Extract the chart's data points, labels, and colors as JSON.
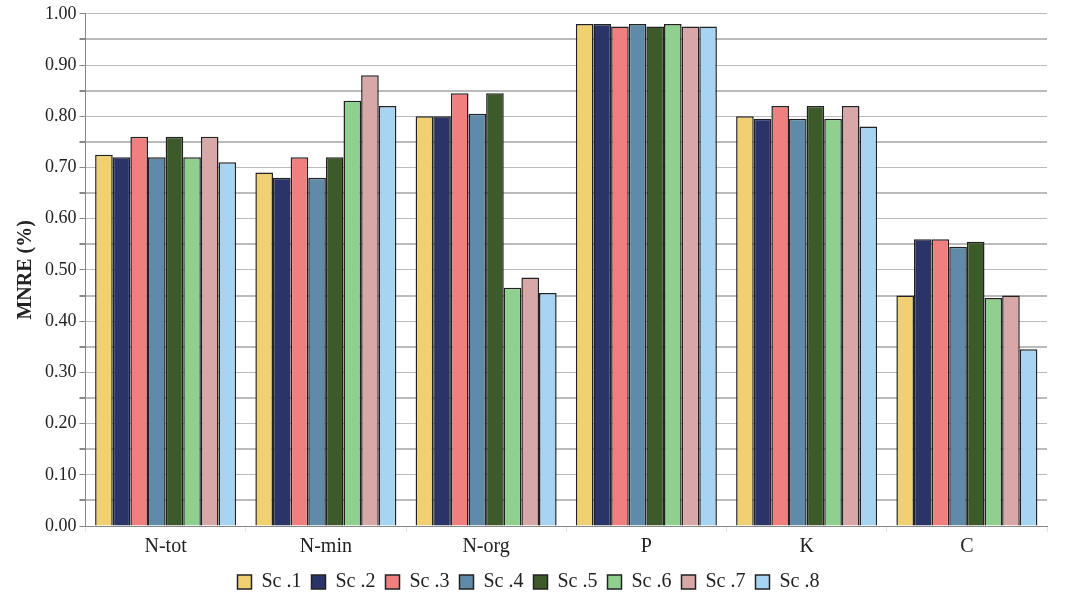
{
  "chart_data": {
    "type": "bar",
    "ylabel": "MNRE (%)",
    "categories": [
      "N-tot",
      "N-min",
      "N-org",
      "P",
      "K",
      "C"
    ],
    "series": [
      {
        "name": "Sc .1",
        "color": "#f0d070",
        "values": [
          0.725,
          0.69,
          0.8,
          0.98,
          0.8,
          0.45
        ]
      },
      {
        "name": "Sc .2",
        "color": "#2a3468",
        "values": [
          0.72,
          0.68,
          0.8,
          0.98,
          0.795,
          0.56
        ]
      },
      {
        "name": "Sc .3",
        "color": "#f08080",
        "values": [
          0.76,
          0.72,
          0.845,
          0.975,
          0.82,
          0.56
        ]
      },
      {
        "name": "Sc .4",
        "color": "#5f8aa8",
        "values": [
          0.72,
          0.68,
          0.805,
          0.98,
          0.795,
          0.545
        ]
      },
      {
        "name": "Sc .5",
        "color": "#3d5a2a",
        "values": [
          0.76,
          0.72,
          0.845,
          0.975,
          0.82,
          0.555
        ]
      },
      {
        "name": "Sc .6",
        "color": "#8fd08f",
        "values": [
          0.72,
          0.83,
          0.465,
          0.98,
          0.795,
          0.445
        ]
      },
      {
        "name": "Sc .7",
        "color": "#d8a8a8",
        "values": [
          0.76,
          0.88,
          0.485,
          0.975,
          0.82,
          0.45
        ]
      },
      {
        "name": "Sc .8",
        "color": "#a8d4f4",
        "values": [
          0.71,
          0.82,
          0.455,
          0.975,
          0.78,
          0.345
        ]
      }
    ],
    "ylim": [
      0,
      1
    ],
    "yticks": [
      {
        "value": 0,
        "label": "0.00"
      },
      {
        "value": 0.05,
        "label": null
      },
      {
        "value": 0.1,
        "label": "0.10"
      },
      {
        "value": 0.15,
        "label": null
      },
      {
        "value": 0.2,
        "label": "0.20"
      },
      {
        "value": 0.25,
        "label": null
      },
      {
        "value": 0.3,
        "label": "0.30"
      },
      {
        "value": 0.35,
        "label": null
      },
      {
        "value": 0.4,
        "label": "0.40"
      },
      {
        "value": 0.45,
        "label": null
      },
      {
        "value": 0.5,
        "label": "0.50"
      },
      {
        "value": 0.55,
        "label": null
      },
      {
        "value": 0.6,
        "label": "0.60"
      },
      {
        "value": 0.65,
        "label": null
      },
      {
        "value": 0.7,
        "label": "0.70"
      },
      {
        "value": 0.75,
        "label": null
      },
      {
        "value": 0.8,
        "label": "0.80"
      },
      {
        "value": 0.85,
        "label": null
      },
      {
        "value": 0.9,
        "label": "0.90"
      },
      {
        "value": 0.95,
        "label": null
      },
      {
        "value": 1,
        "label": "1.00"
      }
    ],
    "grid": true,
    "legend": "bottom"
  }
}
